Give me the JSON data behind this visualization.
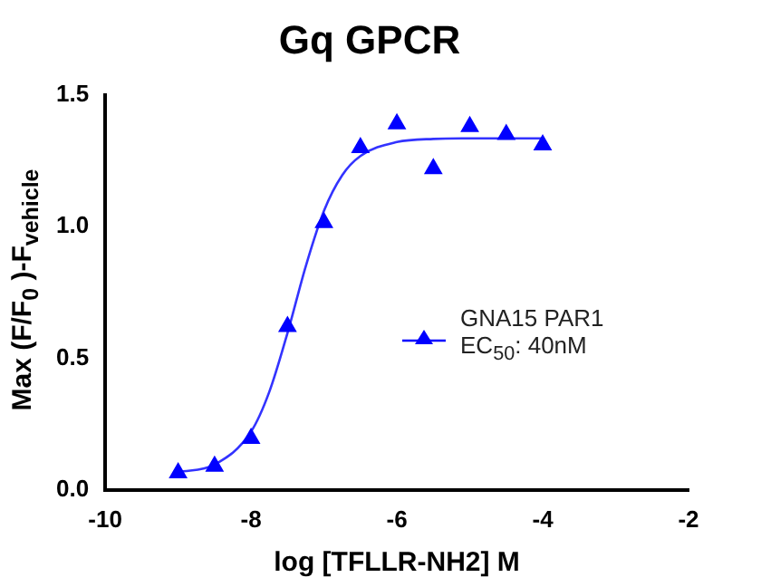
{
  "chart_data": {
    "type": "scatter",
    "title": "Gq GPCR",
    "xlabel": "log [TFLLR-NH2] M",
    "ylabel": "Max (F/F$_{0}$ )-F$_{vehicle}$",
    "xlim": [
      -10,
      -2
    ],
    "xticks": [
      -10,
      -8,
      -6,
      -4,
      -2
    ],
    "ylim": [
      0,
      1.5
    ],
    "yticks": [
      {
        "value": 0,
        "label": "0.0"
      },
      0.5,
      {
        "value": 1,
        "label": "1.0"
      },
      1.5
    ],
    "grid": false,
    "legend": "right",
    "marker": "triangle",
    "series": [
      {
        "name": "GNA15 PAR1 EC$_{50}$: 40nM",
        "color": "#0000ff",
        "x": [
          -9,
          -8.5,
          -8,
          -7.5,
          -7,
          -6.5,
          -6,
          -5.5,
          -5,
          -4.5,
          -4
        ],
        "values": [
          0.065,
          0.09,
          0.195,
          0.62,
          1.015,
          1.3,
          1.39,
          1.22,
          1.38,
          1.35,
          1.31
        ]
      },
      {
        "color": "#3333ff",
        "type": "line",
        "marker": "none",
        "line_style": "solid",
        "x": [
          -9,
          -8.5,
          -8,
          -7.75,
          -7.5,
          -7.25,
          -7,
          -6.75,
          -6.5,
          -6,
          -5.5,
          -5,
          -4
        ],
        "values": [
          0.067,
          0.096,
          0.221,
          0.372,
          0.596,
          0.849,
          1.06,
          1.195,
          1.268,
          1.321,
          1.333,
          1.335,
          1.335
        ]
      }
    ]
  }
}
